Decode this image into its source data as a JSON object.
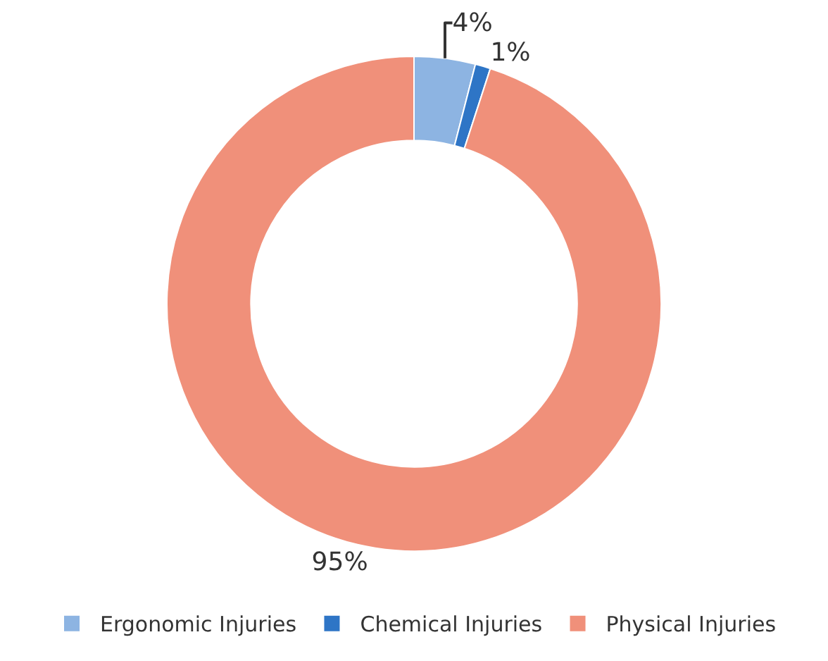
{
  "chart_data": {
    "type": "donut",
    "categories": [
      "Ergonomic Injuries",
      "Chemical Injuries",
      "Physical Injuries"
    ],
    "values": [
      4,
      1,
      95
    ],
    "value_labels": [
      "4%",
      "1%",
      "95%"
    ],
    "colors": [
      "#8db4e2",
      "#2e75c6",
      "#f0907a"
    ],
    "legend": "bottom"
  }
}
